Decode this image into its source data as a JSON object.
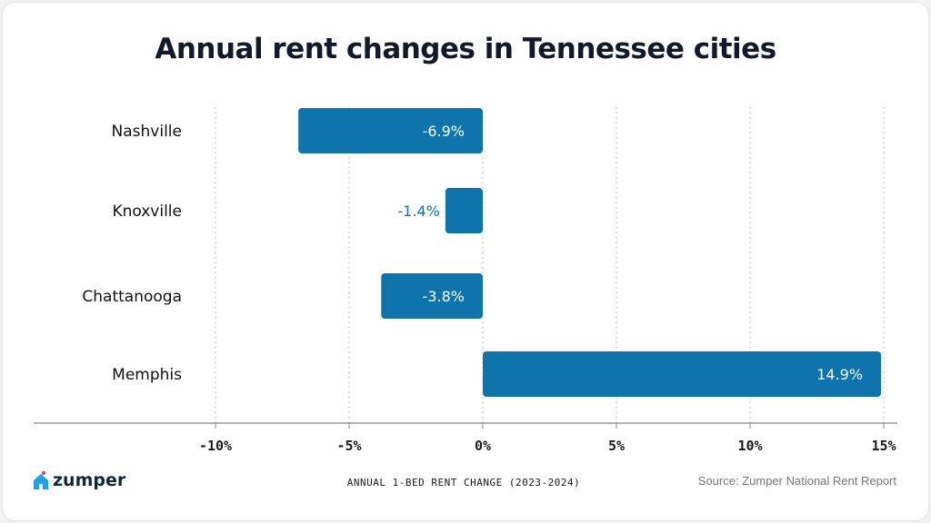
{
  "chart_data": {
    "type": "bar",
    "orientation": "horizontal",
    "title": "Annual rent changes in Tennessee cities",
    "categories": [
      "Nashville",
      "Knoxville",
      "Chattanooga",
      "Memphis"
    ],
    "values": [
      -6.9,
      -1.4,
      -3.8,
      14.9
    ],
    "data_labels": [
      "-6.9%",
      "-1.4%",
      "-3.8%",
      "14.9%"
    ],
    "xlabel": "ANNUAL 1-BED RENT CHANGE (2023-2024)",
    "ylabel": "",
    "xlim": [
      -10,
      15
    ],
    "xticks": [
      -10,
      -5,
      0,
      5,
      10,
      15
    ],
    "xtick_labels": [
      "-10%",
      "-5%",
      "0%",
      "5%",
      "10%",
      "15%"
    ],
    "grid": "vertical dotted",
    "bar_color": "#0e74ab"
  },
  "source": "Source: Zumper National Rent Report",
  "logo": {
    "text": "zumper",
    "icon": "house-heart-icon",
    "color": "#1aa3e8"
  }
}
